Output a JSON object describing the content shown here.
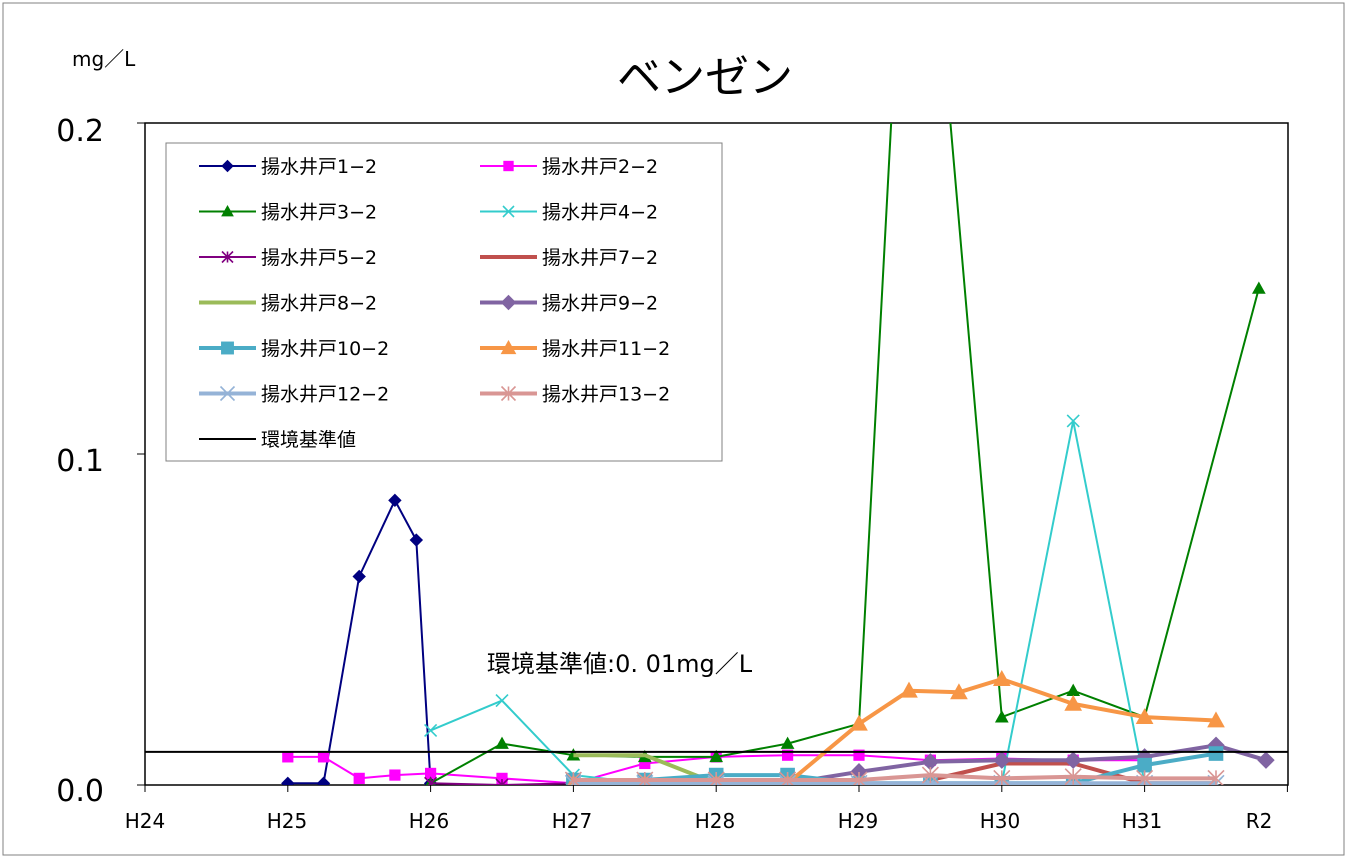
{
  "chart_data": {
    "type": "line",
    "title": "ベンゼン",
    "ylabel": "mg／L",
    "xlabel": "",
    "x_ticks": [
      "H24",
      "H25",
      "H26",
      "H27",
      "H28",
      "H29",
      "H30",
      "H31",
      "R2"
    ],
    "y_ticks": [
      "0.0",
      "0.1",
      "0.2"
    ],
    "xlim": [
      0,
      8
    ],
    "ylim": [
      0,
      0.2
    ],
    "grid": false,
    "legend_position": "top-left",
    "annotation": "環境基準値:0. 01mg／L",
    "standard": {
      "name": "環境基準値",
      "value": 0.01,
      "color": "#000000"
    },
    "series": [
      {
        "name": "揚水井戸1−2",
        "color": "#000080",
        "marker": "diamond",
        "width": 2,
        "x": [
          1.0,
          1.25,
          1.5,
          1.75,
          1.9,
          2.0
        ],
        "y": [
          0.0005,
          0.0005,
          0.063,
          0.086,
          0.074,
          0.0005
        ]
      },
      {
        "name": "揚水井戸2−2",
        "color": "#ff00ff",
        "marker": "square",
        "width": 2,
        "x": [
          1.0,
          1.25,
          1.5,
          1.75,
          2.0,
          2.5,
          3.0,
          3.5,
          4.0,
          4.5,
          5.0,
          5.5,
          6.0,
          6.5,
          7.0
        ],
        "y": [
          0.0085,
          0.0085,
          0.002,
          0.003,
          0.0035,
          0.002,
          0.0005,
          0.0065,
          0.0085,
          0.009,
          0.009,
          0.0075,
          0.008,
          0.0075,
          0.0075
        ]
      },
      {
        "name": "揚水井戸3−2",
        "color": "#008000",
        "marker": "triangle",
        "width": 2,
        "x": [
          2.0,
          2.5,
          3.0,
          3.5,
          4.0,
          4.5,
          5.0,
          5.25,
          5.6,
          6.0,
          6.5,
          7.0,
          7.8
        ],
        "y": [
          0.0005,
          0.0125,
          0.009,
          0.0085,
          0.0085,
          0.0125,
          0.0185,
          0.22,
          0.22,
          0.0205,
          0.0285,
          0.0205,
          0.15
        ]
      },
      {
        "name": "揚水井戸4−2",
        "color": "#33cccc",
        "marker": "x",
        "width": 2,
        "x": [
          2.0,
          2.5,
          3.0,
          3.5,
          4.0,
          4.5,
          5.0,
          5.5,
          6.0,
          6.5,
          7.0,
          7.5
        ],
        "y": [
          0.0165,
          0.0255,
          0.003,
          0.0005,
          0.0005,
          0.0005,
          0.0005,
          0.0005,
          0.0005,
          0.11,
          0.0005,
          0.0005
        ]
      },
      {
        "name": "揚水井戸5−2",
        "color": "#800080",
        "marker": "star",
        "width": 2,
        "x": [
          2.0,
          2.5,
          3.0,
          3.5,
          4.0,
          4.5,
          5.0,
          5.5,
          6.0,
          6.5
        ],
        "y": [
          0.0005,
          0.0,
          0.0005,
          0.0,
          0.0,
          0.0,
          0.0,
          0.0,
          0.0,
          0.0
        ]
      },
      {
        "name": "揚水井戸7−2",
        "color": "#c0504d",
        "marker": "none",
        "width": 4,
        "x": [
          5.5,
          6.0,
          6.5,
          7.0,
          7.5
        ],
        "y": [
          0.0015,
          0.0065,
          0.0065,
          0.0005,
          0.0005
        ]
      },
      {
        "name": "揚水井戸8−2",
        "color": "#9bbb59",
        "marker": "none",
        "width": 4,
        "x": [
          3.0,
          3.5,
          4.0,
          4.5
        ],
        "y": [
          0.009,
          0.009,
          0.0005,
          0.0005
        ]
      },
      {
        "name": "揚水井戸9−2",
        "color": "#8064a2",
        "marker": "diamond",
        "width": 4,
        "x": [
          3.0,
          3.5,
          4.0,
          4.5,
          5.0,
          5.5,
          6.0,
          6.5,
          7.0,
          7.5,
          7.85
        ],
        "y": [
          0.0005,
          0.0005,
          0.0005,
          0.0005,
          0.004,
          0.007,
          0.0075,
          0.0075,
          0.0085,
          0.012,
          0.0075
        ]
      },
      {
        "name": "揚水井戸10−2",
        "color": "#4bacc6",
        "marker": "square",
        "width": 4,
        "x": [
          3.0,
          3.5,
          4.0,
          4.5,
          5.0,
          5.5,
          6.0,
          6.5,
          7.0,
          7.5
        ],
        "y": [
          0.0015,
          0.0015,
          0.003,
          0.003,
          0.0005,
          0.0005,
          0.0005,
          0.0005,
          0.006,
          0.0095
        ]
      },
      {
        "name": "揚水井戸11−2",
        "color": "#f79646",
        "marker": "triangle",
        "width": 4,
        "x": [
          3.0,
          3.5,
          4.0,
          4.5,
          5.0,
          5.35,
          5.7,
          6.0,
          6.5,
          7.0,
          7.5
        ],
        "y": [
          0.0005,
          0.0005,
          0.0005,
          0.0005,
          0.0185,
          0.0285,
          0.028,
          0.032,
          0.0245,
          0.0205,
          0.0195
        ]
      },
      {
        "name": "揚水井戸12−2",
        "color": "#95b3d7",
        "marker": "x",
        "width": 4,
        "x": [
          3.0,
          3.5,
          4.0,
          4.5,
          5.0,
          5.5,
          6.0,
          6.5,
          7.0,
          7.5
        ],
        "y": [
          0.0005,
          0.0005,
          0.0005,
          0.0005,
          0.0005,
          0.0005,
          0.0005,
          0.0005,
          0.0005,
          0.0005
        ]
      },
      {
        "name": "揚水井戸13−2",
        "color": "#d99694",
        "marker": "star",
        "width": 4,
        "x": [
          3.0,
          3.5,
          4.0,
          4.5,
          5.0,
          5.5,
          6.0,
          6.5,
          7.0,
          7.5
        ],
        "y": [
          0.0015,
          0.0015,
          0.0015,
          0.0015,
          0.0015,
          0.003,
          0.002,
          0.0025,
          0.002,
          0.002
        ]
      }
    ]
  }
}
